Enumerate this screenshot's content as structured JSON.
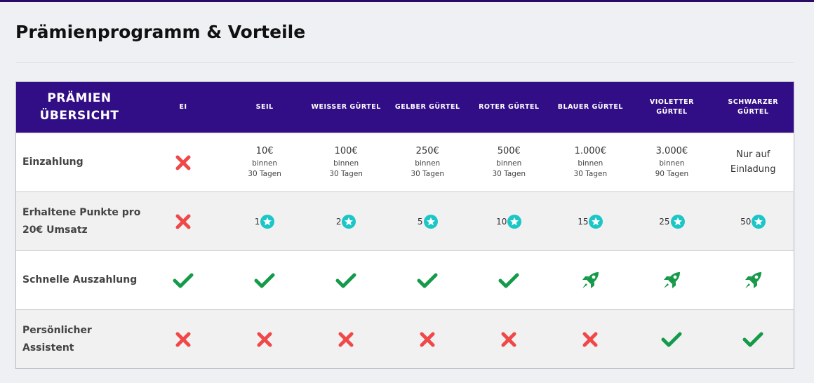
{
  "header": {
    "title": "Prämienprogramm & Vorteile"
  },
  "table": {
    "corner": "PRÄMIEN ÜBERSICHT",
    "columns": [
      "EI",
      "SEIL",
      "WEISSER GÜRTEL",
      "GELBER GÜRTEL",
      "ROTER GÜRTEL",
      "BLAUER GÜRTEL",
      "VIOLETTER GÜRTEL",
      "SCHWARZER GÜRTEL"
    ],
    "rows": [
      {
        "label": "Einzahlung",
        "cells": [
          {
            "icon": "cross"
          },
          {
            "amount": "10€",
            "note": [
              "binnen",
              "30 Tagen"
            ]
          },
          {
            "amount": "100€",
            "note": [
              "binnen",
              "30 Tagen"
            ]
          },
          {
            "amount": "250€",
            "note": [
              "binnen",
              "30 Tagen"
            ]
          },
          {
            "amount": "500€",
            "note": [
              "binnen",
              "30 Tagen"
            ]
          },
          {
            "amount": "1.000€",
            "note": [
              "binnen",
              "30 Tagen"
            ]
          },
          {
            "amount": "3.000€",
            "note": [
              "binnen",
              "90 Tagen"
            ]
          },
          {
            "text": "Nur auf Einladung"
          }
        ]
      },
      {
        "label": "Erhaltene Punkte pro 20€ Umsatz",
        "cells": [
          {
            "icon": "cross"
          },
          {
            "text": "1",
            "icon": "star"
          },
          {
            "text": "2",
            "icon": "star"
          },
          {
            "text": "5",
            "icon": "star"
          },
          {
            "text": "10",
            "icon": "star"
          },
          {
            "text": "15",
            "icon": "star"
          },
          {
            "text": "25",
            "icon": "star"
          },
          {
            "text": "50",
            "icon": "star"
          }
        ]
      },
      {
        "label": "Schnelle Auszahlung",
        "cells": [
          {
            "icon": "check"
          },
          {
            "icon": "check"
          },
          {
            "icon": "check"
          },
          {
            "icon": "check"
          },
          {
            "icon": "check"
          },
          {
            "icon": "rocket"
          },
          {
            "icon": "rocket"
          },
          {
            "icon": "rocket"
          }
        ]
      },
      {
        "label": "Persönlicher Assistent",
        "cells": [
          {
            "icon": "cross"
          },
          {
            "icon": "cross"
          },
          {
            "icon": "cross"
          },
          {
            "icon": "cross"
          },
          {
            "icon": "cross"
          },
          {
            "icon": "cross"
          },
          {
            "icon": "check"
          },
          {
            "icon": "check"
          }
        ]
      }
    ]
  }
}
